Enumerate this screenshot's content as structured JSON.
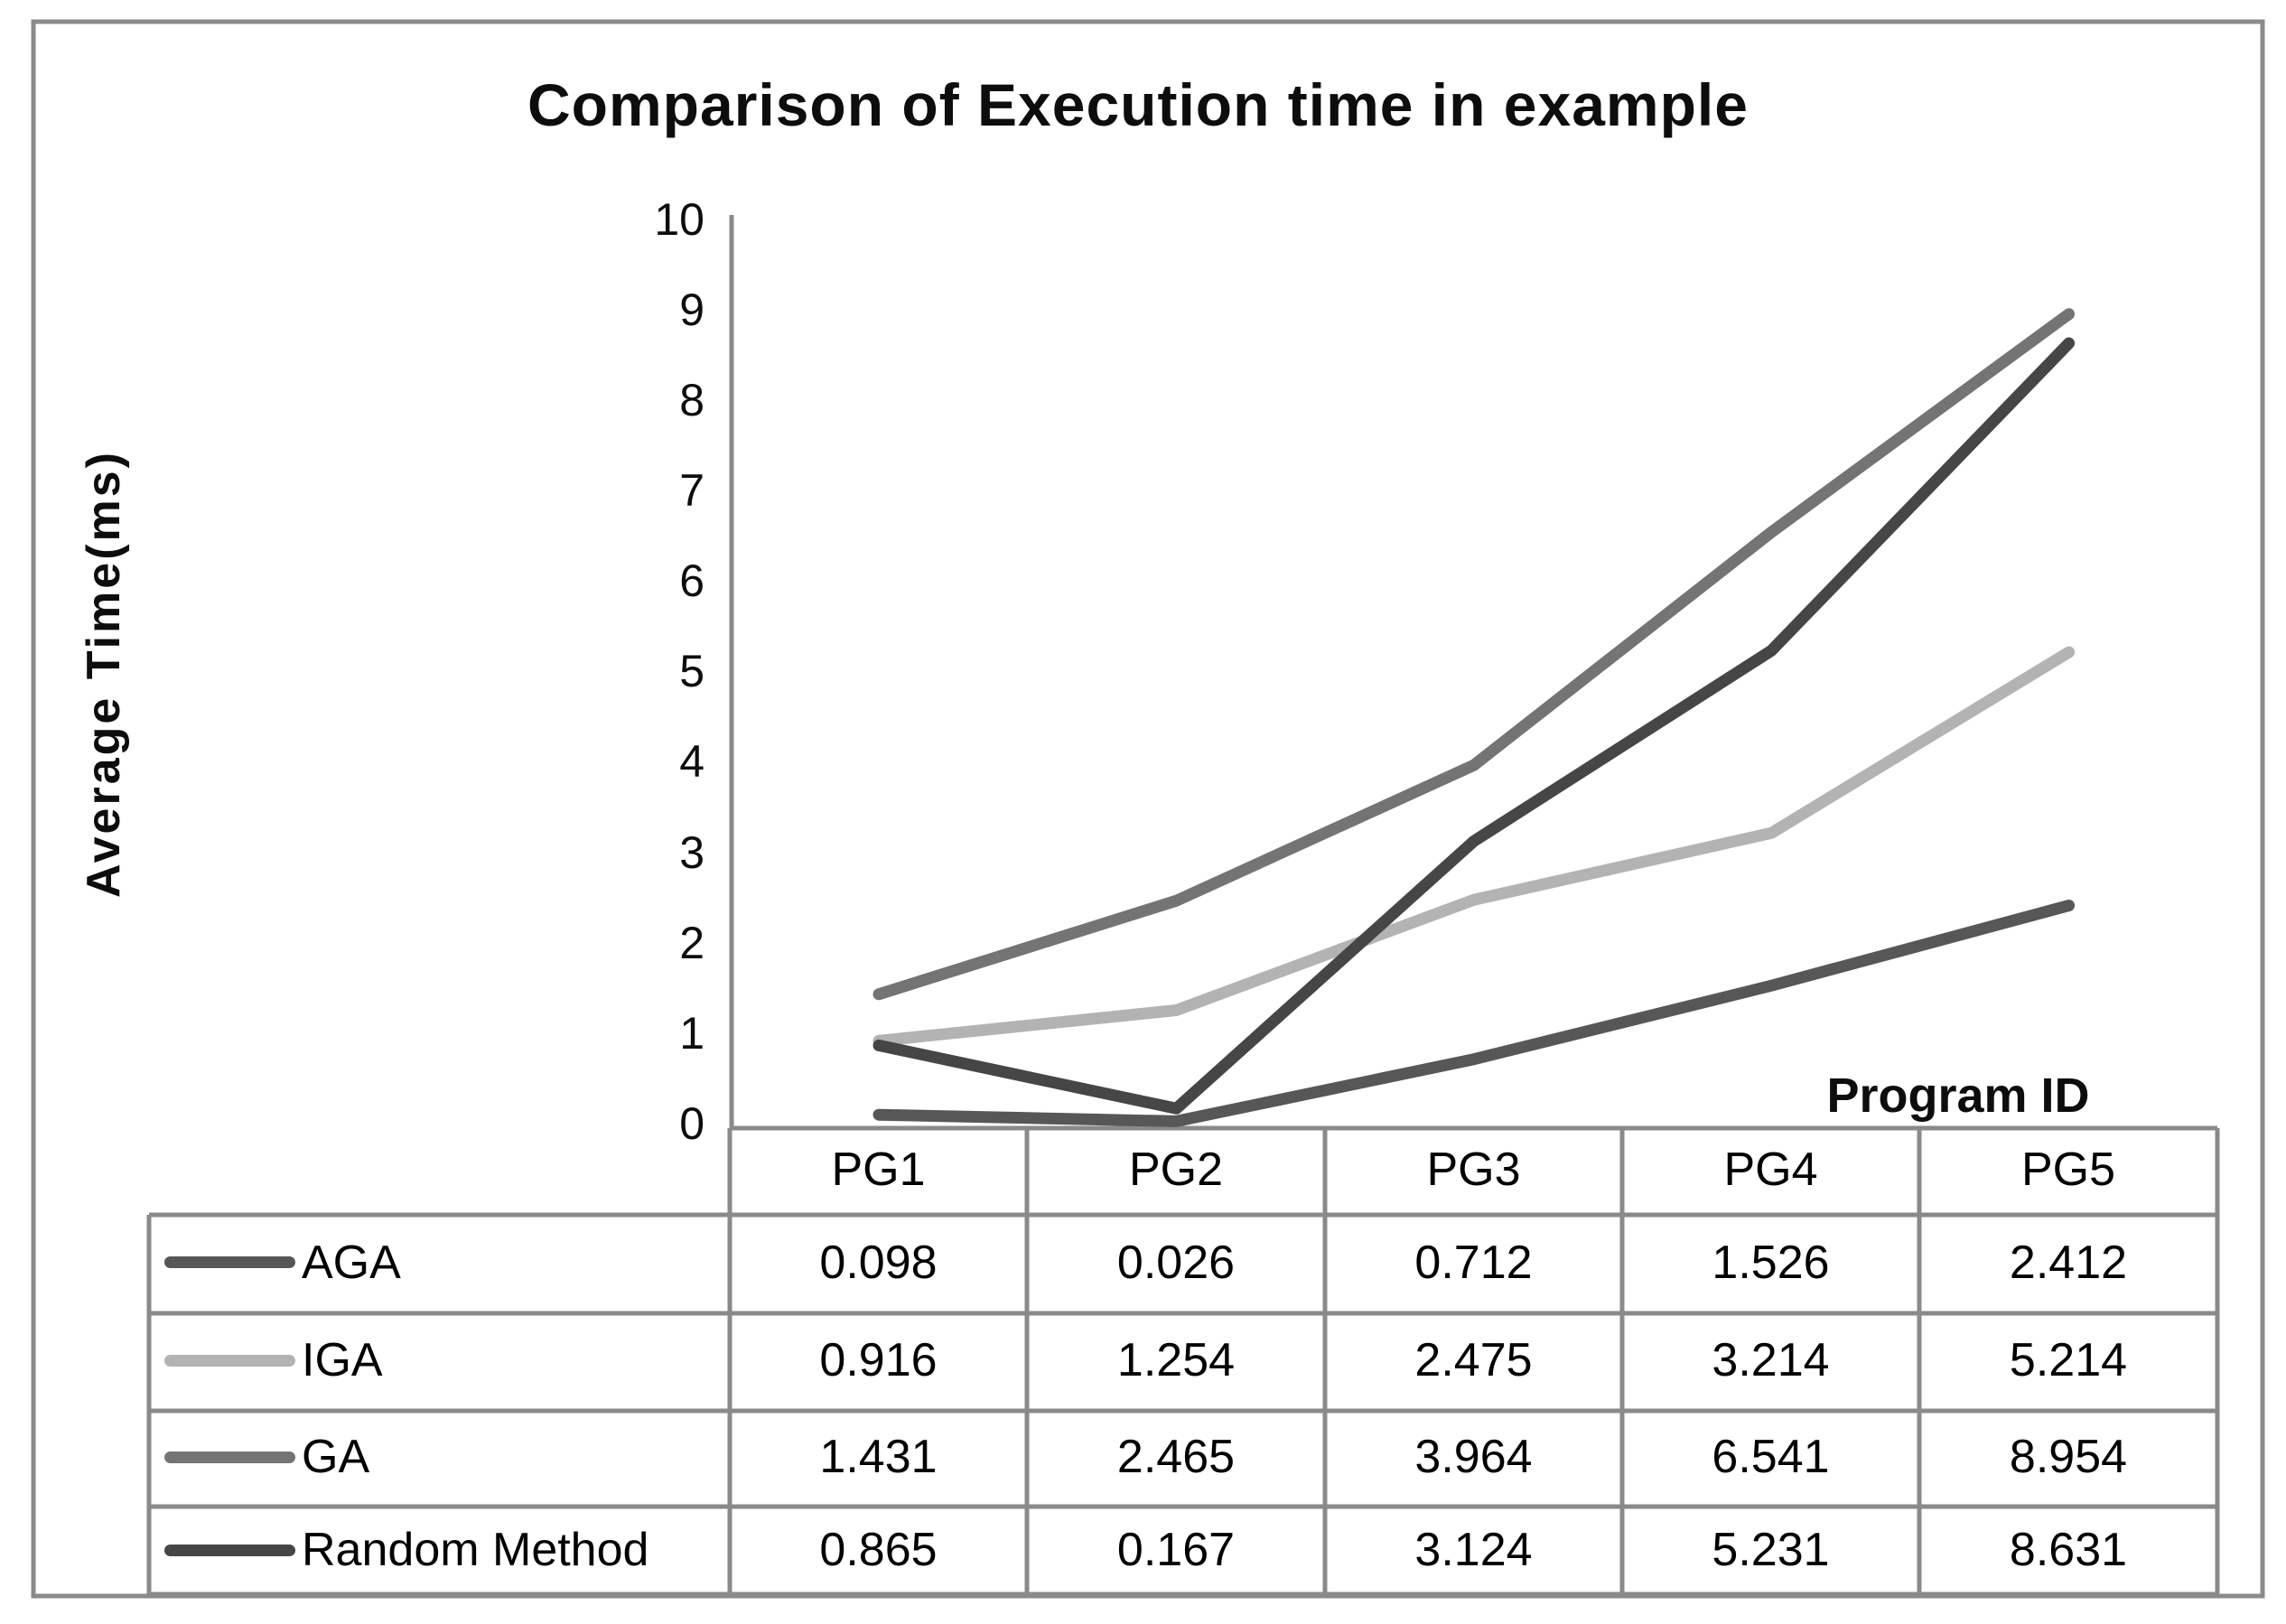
{
  "frame": {
    "border_color": "#8a8a8a"
  },
  "chart_data": {
    "type": "line",
    "title": "Comparison of Execution time in example",
    "xlabel": "Program ID",
    "ylabel": "Average Time(ms)",
    "categories": [
      "PG1",
      "PG2",
      "PG3",
      "PG4",
      "PG5"
    ],
    "series": [
      {
        "name": "AGA",
        "color": "#575757",
        "values": [
          0.098,
          0.026,
          0.712,
          1.526,
          2.412
        ]
      },
      {
        "name": "IGA",
        "color": "#b3b3b3",
        "values": [
          0.916,
          1.254,
          2.475,
          3.214,
          5.214
        ]
      },
      {
        "name": "GA",
        "color": "#747474",
        "values": [
          1.431,
          2.465,
          3.964,
          6.541,
          8.954
        ]
      },
      {
        "name": "Random Method",
        "color": "#464646",
        "values": [
          0.865,
          0.167,
          3.124,
          5.231,
          8.631
        ]
      }
    ],
    "ylim": [
      0,
      10
    ],
    "yticks": [
      0,
      1,
      2,
      3,
      4,
      5,
      6,
      7,
      8,
      9,
      10
    ],
    "grid": false,
    "legend_position": "data-table-left-column",
    "data_table_shown": true
  }
}
